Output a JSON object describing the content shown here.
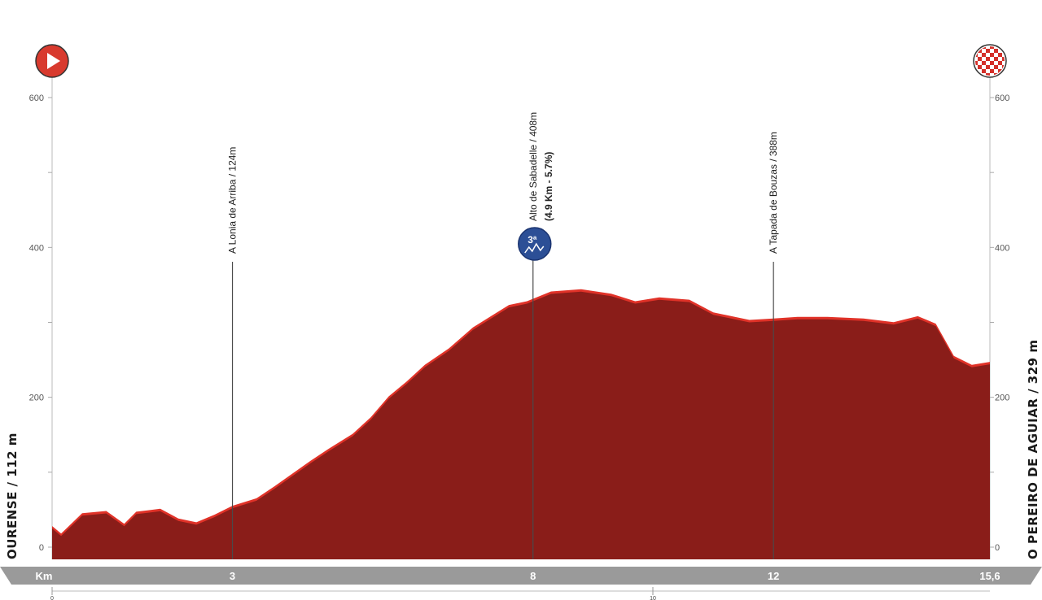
{
  "chart_data": {
    "type": "area",
    "title": "",
    "xlabel": "Km",
    "ylabel": "",
    "xlim": [
      0,
      15.6
    ],
    "ylim": [
      0,
      600
    ],
    "y_ticks": [
      0,
      200,
      400,
      600
    ],
    "y_tick_labels": [
      "0",
      "200",
      "400",
      "600"
    ],
    "x_ticks": [
      0,
      3,
      8,
      12,
      15.6
    ],
    "x_tick_labels": [
      "",
      "3",
      "8",
      "12",
      "15,6"
    ],
    "bottom_scale_ticks": [
      0,
      10
    ],
    "bottom_scale_labels": [
      "0",
      "10"
    ],
    "colors": {
      "profile_fill": "#8a1d19",
      "profile_edge": "#e03228",
      "start_marker": "#d83a2e",
      "climb_badge": "#2c4f96",
      "km_bar": "#9a9a9a"
    },
    "grid": false,
    "profile": {
      "x": [
        0,
        0.15,
        0.5,
        0.9,
        1.2,
        1.4,
        1.6,
        1.8,
        2.1,
        2.4,
        2.7,
        3.0,
        3.4,
        3.7,
        4.0,
        4.3,
        4.6,
        5.0,
        5.3,
        5.6,
        5.9,
        6.2,
        6.6,
        7.0,
        7.3,
        7.6,
        7.9,
        8.3,
        8.8,
        9.3,
        9.7,
        10.1,
        10.6,
        11.0,
        11.6,
        12.0,
        12.4,
        12.9,
        13.5,
        14.0,
        14.4,
        14.7,
        15.0,
        15.3,
        15.6
      ],
      "y": [
        25,
        15,
        42,
        45,
        28,
        44,
        46,
        48,
        35,
        30,
        40,
        52,
        62,
        78,
        95,
        112,
        128,
        148,
        170,
        198,
        218,
        240,
        262,
        290,
        305,
        320,
        325,
        338,
        341,
        335,
        325,
        330,
        327,
        310,
        300,
        302,
        304,
        304,
        302,
        297,
        305,
        295,
        252,
        240,
        244
      ]
    },
    "series": [
      {
        "values": [
          25,
          15,
          42,
          45,
          28,
          44,
          46,
          48,
          35,
          30,
          40,
          52,
          62,
          78,
          95,
          112,
          128,
          148,
          170,
          198,
          218,
          240,
          262,
          290,
          305,
          320,
          325,
          338,
          341,
          335,
          325,
          330,
          327,
          310,
          300,
          302,
          304,
          304,
          302,
          297,
          305,
          295,
          252,
          240,
          244
        ]
      }
    ],
    "annotations": [
      {
        "km": 3,
        "label": "A Lonia de Arriba / 124m",
        "sublabel": ""
      },
      {
        "km": 8,
        "label": "Alto de Sabadelle / 408m",
        "sublabel": "(4.9 Km - 5.7%)",
        "badge": "3ª",
        "badge_icon": "mountain-icon"
      },
      {
        "km": 12,
        "label": "A Tapada de Bouzas / 388m",
        "sublabel": ""
      }
    ],
    "start": {
      "label": "OURENSE / 112 m",
      "icon": "play-icon"
    },
    "finish": {
      "label": "O PEREIRO DE AGUIAR / 329 m",
      "icon": "checkered-flag-icon"
    }
  }
}
